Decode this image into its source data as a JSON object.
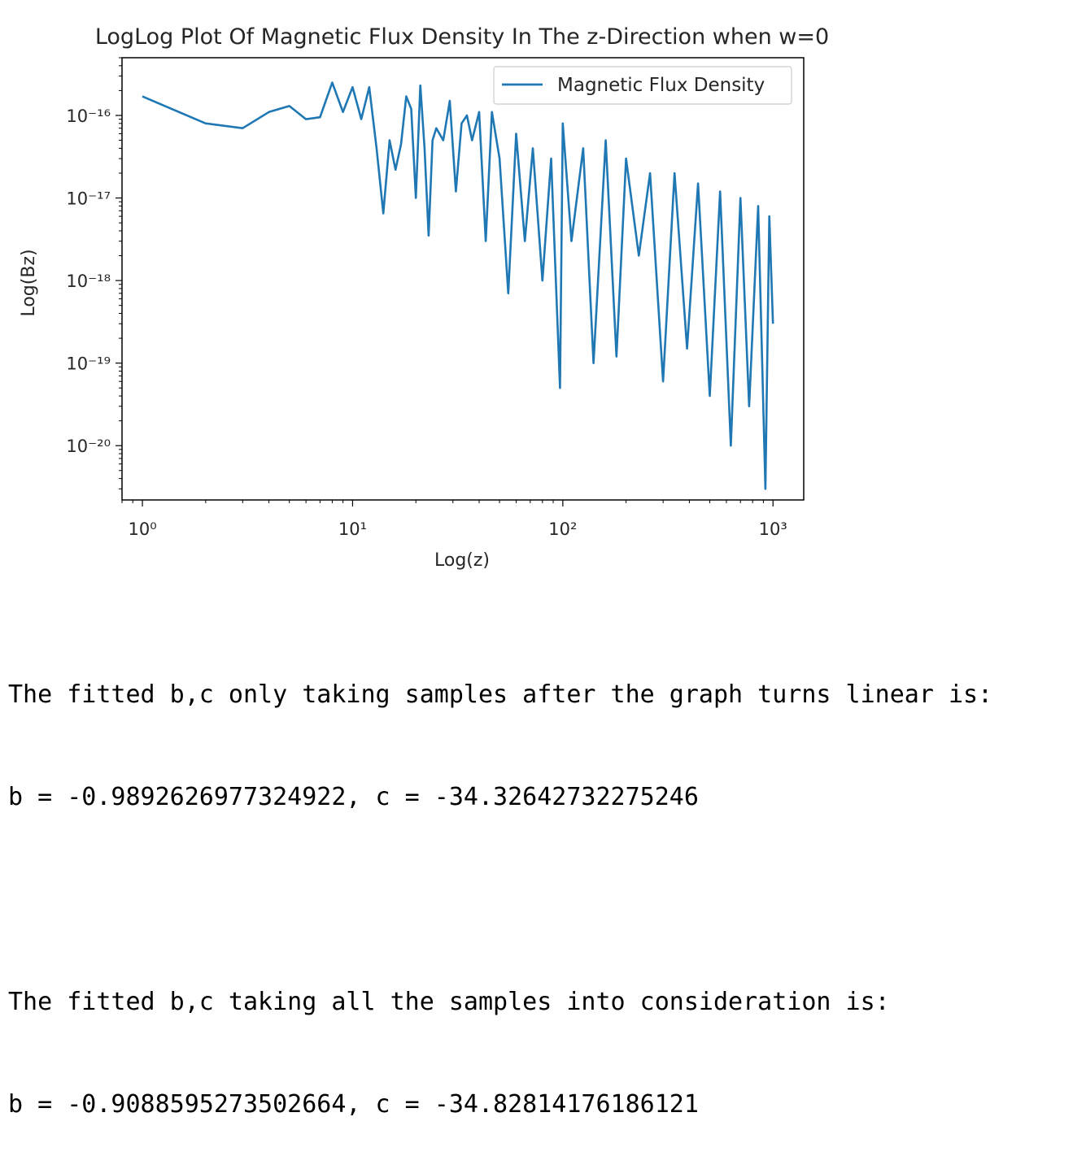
{
  "chart_data": {
    "type": "line",
    "title": "LogLog Plot Of Magnetic Flux Density In The z-Direction when w=0",
    "xlabel": "Log(z)",
    "ylabel": "Log(Bz)",
    "xscale": "log",
    "yscale": "log",
    "xlim": [
      0.8,
      1400
    ],
    "ylim": [
      2.2e-21,
      5e-16
    ],
    "xticks": [
      1,
      10,
      100,
      1000
    ],
    "xtick_labels": [
      "10⁰",
      "10¹",
      "10²",
      "10³"
    ],
    "yticks": [
      1e-16,
      1e-17,
      1e-18,
      1e-19,
      1e-20
    ],
    "ytick_labels": [
      "10⁻¹⁶",
      "10⁻¹⁷",
      "10⁻¹⁸",
      "10⁻¹⁹",
      "10⁻²⁰"
    ],
    "legend": "top-right",
    "grid": false,
    "series": [
      {
        "name": "Magnetic Flux Density",
        "color": "#1f77b4",
        "x": [
          1,
          2,
          3,
          4,
          5,
          6,
          7,
          8,
          9,
          10,
          11,
          12,
          13,
          14,
          15,
          16,
          17,
          18,
          19,
          20,
          21,
          22,
          23,
          24,
          25,
          27,
          29,
          31,
          33,
          35,
          37,
          40,
          43,
          46,
          50,
          55,
          60,
          66,
          72,
          80,
          88,
          97,
          100,
          110,
          125,
          140,
          160,
          180,
          200,
          230,
          260,
          300,
          340,
          390,
          440,
          500,
          560,
          630,
          700,
          770,
          850,
          920,
          960,
          1000
        ],
        "y": [
          1.7e-16,
          8e-17,
          7e-17,
          1.1e-16,
          1.3e-16,
          9e-17,
          9.5e-17,
          2.5e-16,
          1.1e-16,
          2.2e-16,
          9e-17,
          2.2e-16,
          4e-17,
          6.5e-18,
          5e-17,
          2.2e-17,
          4.5e-17,
          1.7e-16,
          1.2e-16,
          1e-17,
          2.3e-16,
          4e-17,
          3.5e-18,
          5e-17,
          7e-17,
          5e-17,
          1.5e-16,
          1.2e-17,
          8e-17,
          1e-16,
          5e-17,
          1.1e-16,
          3e-18,
          1.1e-16,
          3e-17,
          7e-19,
          6e-17,
          3e-18,
          4e-17,
          1e-18,
          3e-17,
          5e-20,
          8e-17,
          3e-18,
          4e-17,
          1e-19,
          5e-17,
          1.2e-19,
          3e-17,
          2e-18,
          2e-17,
          6e-20,
          2e-17,
          1.5e-19,
          1.5e-17,
          4e-20,
          1.2e-17,
          1e-20,
          1e-17,
          3e-20,
          8e-18,
          3e-21,
          6e-18,
          3e-19
        ]
      }
    ]
  },
  "output": {
    "line1": "The fitted b,c only taking samples after the graph turns linear is:",
    "line2": "b = -0.9892626977324922, c = -34.32642732275246",
    "line3": "The fitted b,c taking all the samples into consideration is:",
    "line4": "b = -0.9088595273502664, c = -34.82814176186121"
  }
}
